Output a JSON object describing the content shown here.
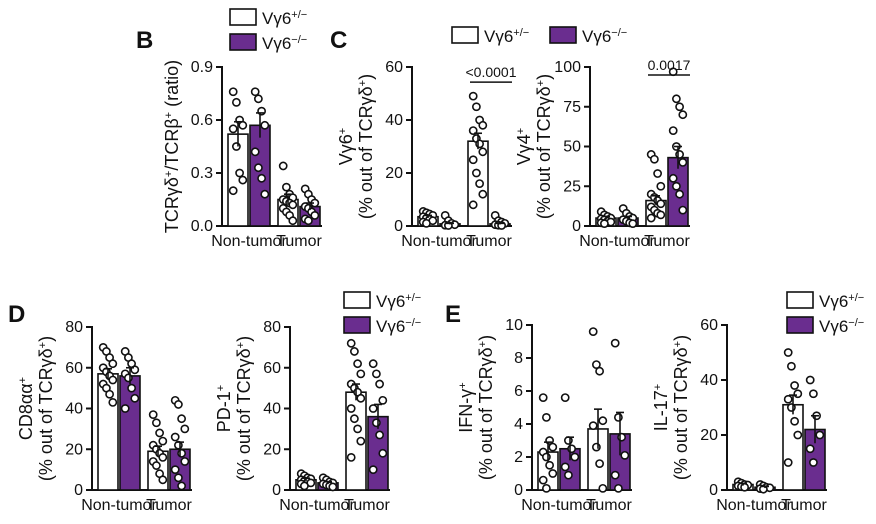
{
  "colors": {
    "wt_fill": "#ffffff",
    "ko_fill": "#6a2d8f",
    "ink": "#111111"
  },
  "legend": {
    "het": "Vγ6+/−",
    "ko": "Vγ6−/−"
  },
  "panel_letters": {
    "B": "B",
    "C": "C",
    "D": "D",
    "E": "E"
  },
  "chart_data": [
    {
      "type": "bar",
      "ylabel": "TCRγδ+/TCRβ+ (ratio)",
      "categories": [
        "Non-tumor",
        "Tumor"
      ],
      "ylim": [
        0,
        0.9
      ],
      "yticks": [
        0,
        0.3,
        0.6,
        0.9
      ],
      "series": [
        {
          "name": "Vγ6+/−",
          "values": [
            0.52,
            0.15
          ],
          "errors": [
            0.07,
            0.03
          ],
          "points": [
            [
              0.76,
              0.7,
              0.6,
              0.57,
              0.55,
              0.45,
              0.3,
              0.26,
              0.2
            ],
            [
              0.34,
              0.22,
              0.18,
              0.16,
              0.15,
              0.14,
              0.13,
              0.12,
              0.1,
              0.08,
              0.06,
              0.03
            ]
          ]
        },
        {
          "name": "Vγ6−/−",
          "values": [
            0.57,
            0.11
          ],
          "errors": [
            0.07,
            0.02
          ],
          "points": [
            [
              0.76,
              0.72,
              0.65,
              0.57,
              0.42,
              0.33,
              0.27,
              0.18
            ],
            [
              0.21,
              0.18,
              0.15,
              0.13,
              0.11,
              0.1,
              0.08,
              0.06,
              0.04,
              0.03
            ]
          ]
        }
      ]
    },
    {
      "type": "bar",
      "ylabel_top": "Vγ6+",
      "ylabel_bottom": "(% out of TCRγδ+)",
      "categories": [
        "Non-tumor",
        "Tumor"
      ],
      "ylim": [
        0,
        60
      ],
      "yticks": [
        0,
        20,
        40,
        60
      ],
      "pvalue": "<0.0001",
      "series": [
        {
          "name": "Vγ6+/−",
          "values": [
            3.5,
            32
          ],
          "errors": [
            0.5,
            3
          ],
          "points": [
            [
              5.5,
              5,
              4.5,
              4,
              3.5,
              3,
              2.5,
              2,
              1.5,
              1
            ],
            [
              49,
              45,
              40,
              38,
              36,
              33,
              31,
              28,
              25,
              20,
              16,
              12,
              8
            ]
          ]
        },
        {
          "name": "Vγ6−/−",
          "values": [
            0.8,
            0.8
          ],
          "errors": [
            0.2,
            0.2
          ],
          "points": [
            [
              4,
              2,
              1,
              0.5,
              0.3,
              0.2
            ],
            [
              4,
              2,
              1.5,
              1,
              0.5,
              0.3,
              0.2
            ]
          ]
        }
      ]
    },
    {
      "type": "bar",
      "ylabel_top": "Vγ4+",
      "ylabel_bottom": "(% out of TCRγδ+)",
      "categories": [
        "Non-tumor",
        "Tumor"
      ],
      "ylim": [
        0,
        100
      ],
      "yticks": [
        0,
        25,
        50,
        75,
        100
      ],
      "pvalue": "0.0017",
      "series": [
        {
          "name": "Vγ6+/−",
          "values": [
            5,
            16
          ],
          "errors": [
            1,
            3
          ],
          "points": [
            [
              9,
              7,
              6,
              5,
              4.5,
              4,
              3,
              2.5,
              2,
              1.5
            ],
            [
              45,
              42,
              33,
              25,
              20,
              18,
              16,
              14,
              12,
              10,
              8,
              7,
              5
            ]
          ]
        },
        {
          "name": "Vγ6−/−",
          "values": [
            5,
            43
          ],
          "errors": [
            1,
            7
          ],
          "points": [
            [
              11,
              8,
              6,
              5,
              4,
              3,
              2,
              1.5
            ],
            [
              97,
              80,
              75,
              70,
              60,
              50,
              45,
              40,
              30,
              25,
              20,
              10
            ]
          ]
        }
      ]
    },
    {
      "type": "bar",
      "ylabel_top": "CD8αα+",
      "ylabel_bottom": "(% out of TCRγδ+)",
      "categories": [
        "Non-tumor",
        "Tumor"
      ],
      "ylim": [
        0,
        80
      ],
      "yticks": [
        0,
        20,
        40,
        60,
        80
      ],
      "series": [
        {
          "name": "Vγ6+/−",
          "values": [
            57,
            19
          ],
          "errors": [
            2.5,
            2.5
          ],
          "points": [
            [
              70,
              68,
              65,
              62,
              60,
              58,
              56,
              54,
              52,
              50,
              47,
              43
            ],
            [
              37,
              33,
              28,
              24,
              22,
              20,
              18,
              16,
              14,
              12,
              8,
              5
            ]
          ]
        },
        {
          "name": "Vγ6−/−",
          "values": [
            56,
            20
          ],
          "errors": [
            4,
            3.5
          ],
          "points": [
            [
              68,
              65,
              62,
              59,
              57,
              55,
              50,
              45,
              40
            ],
            [
              44,
              42,
              35,
              30,
              26,
              22,
              18,
              14,
              10,
              6,
              2
            ]
          ]
        }
      ]
    },
    {
      "type": "bar",
      "ylabel_top": "PD-1+",
      "ylabel_bottom": "(% out of TCRγδ+)",
      "categories": [
        "Non-tumor",
        "Tumor"
      ],
      "ylim": [
        0,
        80
      ],
      "yticks": [
        0,
        20,
        40,
        60,
        80
      ],
      "series": [
        {
          "name": "Vγ6+/−",
          "values": [
            5,
            48
          ],
          "errors": [
            0.8,
            4
          ],
          "points": [
            [
              8,
              7,
              6,
              5.5,
              5,
              4.5,
              4,
              3.5,
              3,
              2
            ],
            [
              72,
              68,
              62,
              57,
              52,
              50,
              48,
              45,
              40,
              35,
              30,
              24,
              16
            ]
          ]
        },
        {
          "name": "Vγ6−/−",
          "values": [
            3.5,
            36
          ],
          "errors": [
            0.6,
            6
          ],
          "points": [
            [
              6,
              5,
              4,
              3.5,
              3,
              2.5,
              2,
              1.5
            ],
            [
              62,
              57,
              52,
              44,
              40,
              33,
              27,
              18,
              10
            ]
          ]
        }
      ]
    },
    {
      "type": "bar",
      "ylabel_top": "IFN-γ+",
      "ylabel_bottom": "(% out of TCRγδ+)",
      "categories": [
        "Non-tumor",
        "Tumor"
      ],
      "ylim": [
        0,
        10
      ],
      "yticks": [
        0,
        2,
        4,
        6,
        8,
        10
      ],
      "series": [
        {
          "name": "Vγ6+/−",
          "values": [
            2.3,
            3.7
          ],
          "errors": [
            0.6,
            1.2
          ],
          "points": [
            [
              5.6,
              4.4,
              3,
              2.6,
              2.3,
              2,
              1.5,
              1,
              0.6,
              0.1
            ],
            [
              9.6,
              7.6,
              7.2,
              4.2,
              3.9,
              2.6,
              1.6,
              0.1
            ]
          ]
        },
        {
          "name": "Vγ6−/−",
          "values": [
            2.5,
            3.4
          ],
          "errors": [
            0.7,
            1.3
          ],
          "points": [
            [
              5.6,
              3,
              2.5,
              2,
              1.4,
              0.9
            ],
            [
              8.9,
              4.4,
              3.2,
              2.1,
              0.9,
              0.1
            ]
          ]
        }
      ]
    },
    {
      "type": "bar",
      "ylabel_top": "IL-17+",
      "ylabel_bottom": "(% out of TCRγδ+)",
      "categories": [
        "Non-tumor",
        "Tumor"
      ],
      "ylim": [
        0,
        60
      ],
      "yticks": [
        0,
        20,
        40,
        60
      ],
      "series": [
        {
          "name": "Vγ6+/−",
          "values": [
            2,
            31
          ],
          "errors": [
            0.4,
            3.5
          ],
          "points": [
            [
              3,
              2.5,
              2,
              1.8,
              1.5,
              1.2,
              1
            ],
            [
              50,
              45,
              38,
              35,
              33,
              30,
              25,
              20,
              10
            ]
          ]
        },
        {
          "name": "Vγ6−/−",
          "values": [
            1,
            22
          ],
          "errors": [
            0.3,
            5
          ],
          "points": [
            [
              2,
              1.5,
              1,
              0.8,
              0.5,
              0.3
            ],
            [
              40,
              35,
              27,
              20,
              15,
              10
            ]
          ]
        }
      ]
    }
  ]
}
